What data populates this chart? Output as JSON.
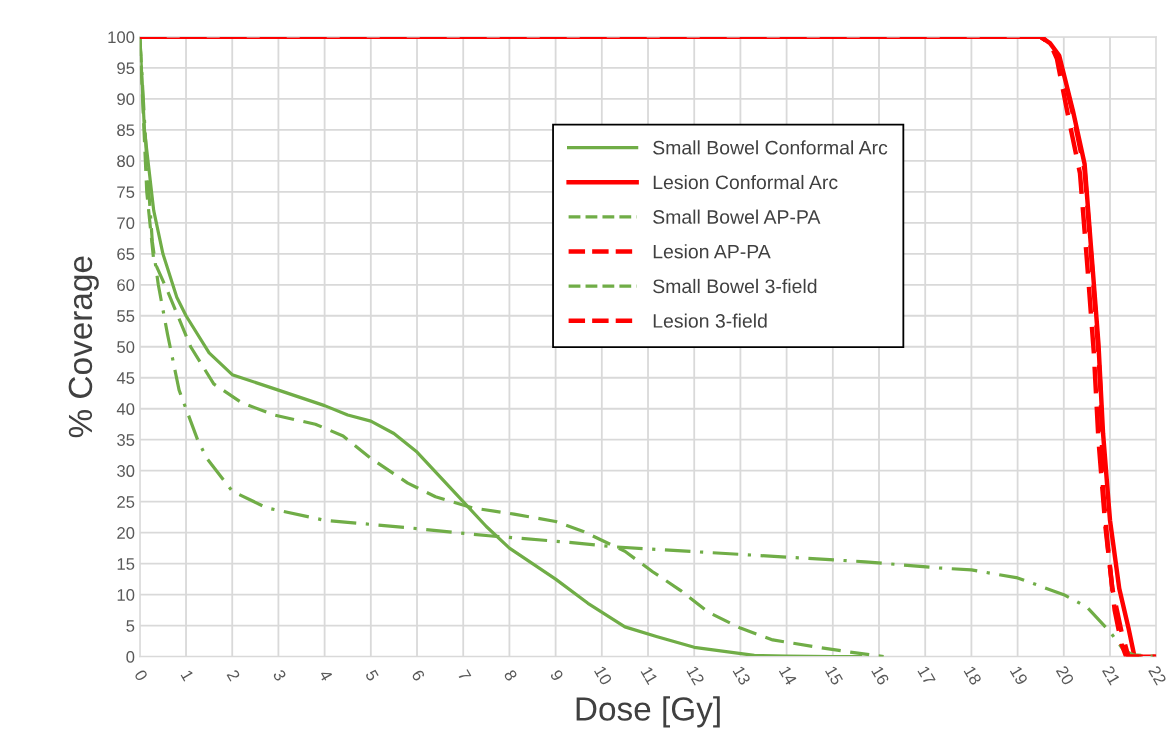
{
  "chart_data": {
    "type": "line",
    "xlabel": "Dose [Gy]",
    "ylabel": "% Coverage",
    "xlim": [
      0,
      22
    ],
    "ylim": [
      0,
      100
    ],
    "xticks": [
      0,
      1,
      2,
      3,
      4,
      5,
      6,
      7,
      8,
      9,
      10,
      11,
      12,
      13,
      14,
      15,
      16,
      17,
      18,
      19,
      20,
      21,
      22
    ],
    "yticks": [
      0,
      5,
      10,
      15,
      20,
      25,
      30,
      35,
      40,
      45,
      50,
      55,
      60,
      65,
      70,
      75,
      80,
      85,
      90,
      95,
      100
    ],
    "grid": true,
    "legend": "top",
    "marker": "none",
    "series": [
      {
        "name": "Small Bowel Conformal Arc",
        "color": "#70ad47",
        "line_style": "solid",
        "x": [
          0,
          0.1,
          0.3,
          0.5,
          0.8,
          1,
          1.5,
          2,
          3,
          4,
          4.5,
          5,
          5.5,
          6,
          6.5,
          7,
          7.5,
          8,
          8.5,
          9,
          9.7,
          10.5,
          11.2,
          12,
          13.3,
          14,
          15,
          15.6
        ],
        "values": [
          100,
          85,
          72,
          65,
          58,
          55,
          49,
          45.5,
          43,
          40.5,
          39,
          38,
          36,
          33,
          29,
          25,
          21,
          17.5,
          15,
          12.5,
          8.6,
          4.8,
          3.2,
          1.5,
          0.2,
          0.1,
          0,
          0
        ]
      },
      {
        "name": "Lesion Conformal Arc",
        "color": "#ff0000",
        "line_style": "solid",
        "x": [
          0,
          19.5,
          19.7,
          19.9,
          20.2,
          20.45,
          20.6,
          20.75,
          20.85,
          21,
          21.2,
          21.4,
          21.53,
          22
        ],
        "values": [
          100,
          100,
          99,
          97,
          88,
          79.5,
          65,
          50.5,
          36,
          22,
          11,
          4.6,
          0,
          0
        ]
      },
      {
        "name": "Small Bowel AP-PA",
        "color": "#70ad47",
        "line_style": "dashdot",
        "x": [
          0,
          0.15,
          0.27,
          0.4,
          0.6,
          0.85,
          1.25,
          1.45,
          2,
          2.75,
          4,
          5.8,
          7.55,
          9.2,
          10.3,
          12.3,
          13.9,
          15.7,
          17.3,
          18,
          19,
          20,
          20.5,
          21,
          21.3,
          21.5,
          22
        ],
        "values": [
          100,
          80,
          67,
          60,
          52,
          43,
          35,
          32,
          26.7,
          24,
          22,
          20.8,
          19.5,
          18.5,
          17.7,
          16.8,
          16.1,
          15.3,
          14.3,
          14,
          12.7,
          10,
          8,
          4,
          1,
          0.3,
          0
        ]
      },
      {
        "name": "Lesion AP-PA",
        "color": "#ff0000",
        "line_style": "dashed",
        "x": [
          0,
          19.5,
          19.7,
          19.85,
          20.1,
          20.35,
          20.5,
          20.65,
          20.75,
          20.9,
          21.05,
          21.25,
          21.4,
          22
        ],
        "values": [
          100,
          100,
          99,
          96.5,
          87,
          78,
          64,
          49,
          35,
          21,
          11,
          4,
          0,
          0
        ]
      },
      {
        "name": "Small Bowel 3-field",
        "color": "#70ad47",
        "line_style": "dashed",
        "x": [
          0,
          0.15,
          0.3,
          0.6,
          1.1,
          1.6,
          2.2,
          2.9,
          3.8,
          4.4,
          5,
          5.8,
          6.4,
          7.2,
          8.1,
          9,
          9.6,
          10.5,
          11.1,
          11.7,
          12.3,
          13,
          13.7,
          14.6,
          15.5,
          16.1
        ],
        "values": [
          100,
          75,
          64,
          59,
          50,
          44,
          41,
          39,
          37.5,
          35.6,
          32,
          28,
          25.8,
          24,
          23,
          21.8,
          20.2,
          17,
          13.7,
          10.7,
          7.2,
          4.6,
          2.7,
          1.6,
          0.6,
          0
        ]
      },
      {
        "name": "Lesion 3-field",
        "color": "#ff0000",
        "line_style": "dashed",
        "x": [
          0,
          19.5,
          19.7,
          19.9,
          20.2,
          20.45,
          20.6,
          20.75,
          20.8,
          20.85,
          20.95,
          21.1,
          21.25,
          21.35,
          22
        ],
        "values": [
          100,
          100,
          99,
          96.5,
          87.5,
          78.5,
          64,
          49,
          42,
          27,
          18,
          7.5,
          2,
          0,
          0
        ]
      }
    ]
  }
}
